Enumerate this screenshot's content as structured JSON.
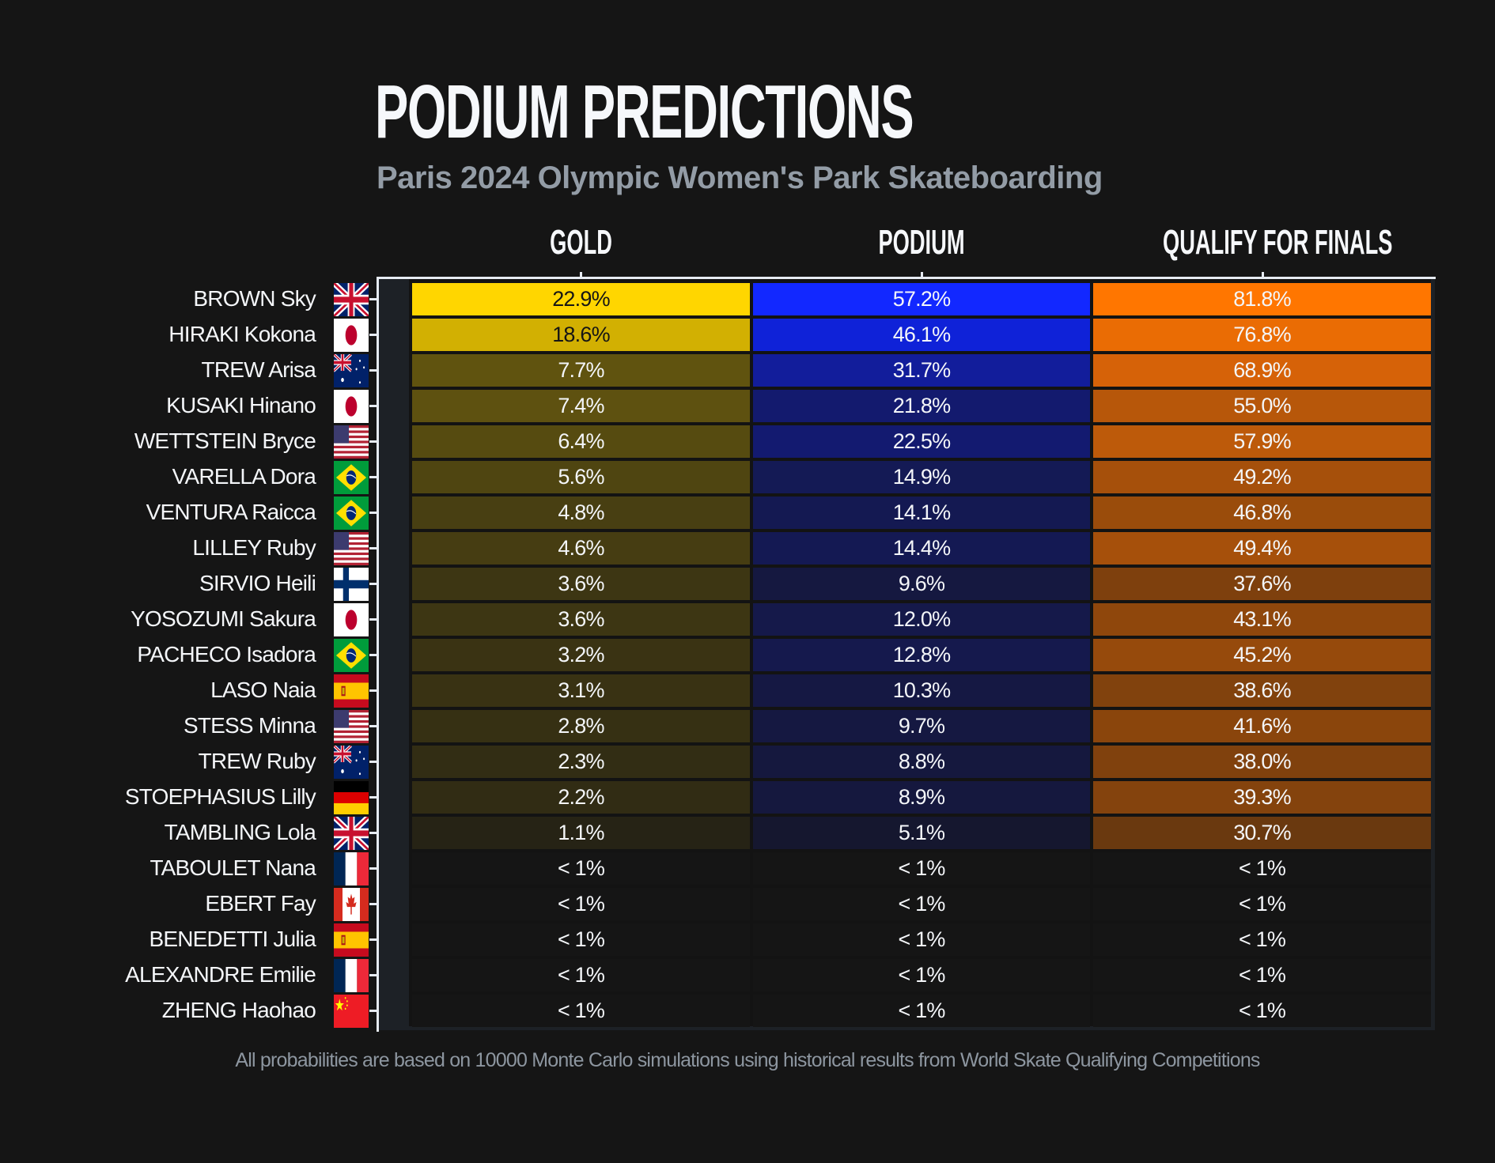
{
  "title": "PODIUM PREDICTIONS",
  "subtitle": "Paris 2024 Olympic Women's Park Skateboarding",
  "columns": [
    "GOLD",
    "PODIUM",
    "QUALIFY FOR FINALS"
  ],
  "footer": "All probabilities are based on 10000 Monte Carlo simulations using historical results from World Skate Qualifying Competitions",
  "colors": {
    "background": "#151515",
    "gold_max": "#ffd600",
    "podium_max": "#1228ff",
    "qualify_max": "#ff7600",
    "subtitle": "#939ca6"
  },
  "rows": [
    {
      "name": "BROWN Sky",
      "flag": "gb",
      "gold": "22.9%",
      "podium": "57.2%",
      "qualify": "81.8%",
      "gold_color": "#ffd600",
      "podium_color": "#1228ff",
      "qualify_color": "#ff7600"
    },
    {
      "name": "HIRAKI Kokona",
      "flag": "jp",
      "gold": "18.6%",
      "podium": "46.1%",
      "qualify": "76.8%",
      "gold_color": "#d2b002",
      "podium_color": "#0f22d8",
      "qualify_color": "#ea6c04"
    },
    {
      "name": "TREW Arisa",
      "flag": "au",
      "gold": "7.7%",
      "podium": "31.7%",
      "qualify": "68.9%",
      "gold_color": "#60530f",
      "podium_color": "#121d9b",
      "qualify_color": "#d66208"
    },
    {
      "name": "KUSAKI Hinano",
      "flag": "jp",
      "gold": "7.4%",
      "podium": "21.8%",
      "qualify": "55.0%",
      "gold_color": "#5e5110",
      "podium_color": "#131a6e",
      "qualify_color": "#b7570a"
    },
    {
      "name": "WETTSTEIN Bryce",
      "flag": "us",
      "gold": "6.4%",
      "podium": "22.5%",
      "qualify": "57.9%",
      "gold_color": "#564b10",
      "podium_color": "#131a70",
      "qualify_color": "#bd5a0a"
    },
    {
      "name": "VARELLA Dora",
      "flag": "br",
      "gold": "5.6%",
      "podium": "14.9%",
      "qualify": "49.2%",
      "gold_color": "#4f4511",
      "podium_color": "#141a55",
      "qualify_color": "#a6500b"
    },
    {
      "name": "VENTURA Raicca",
      "flag": "br",
      "gold": "4.8%",
      "podium": "14.1%",
      "qualify": "46.8%",
      "gold_color": "#483f12",
      "podium_color": "#141952",
      "qualify_color": "#9a4c0b"
    },
    {
      "name": "LILLEY Ruby",
      "flag": "us",
      "gold": "4.6%",
      "podium": "14.4%",
      "qualify": "49.4%",
      "gold_color": "#463d12",
      "podium_color": "#141953",
      "qualify_color": "#a6500b"
    },
    {
      "name": "SIRVIO Heili",
      "flag": "fi",
      "gold": "3.6%",
      "podium": "9.6%",
      "qualify": "37.6%",
      "gold_color": "#3d3613",
      "podium_color": "#151840",
      "qualify_color": "#7e400d"
    },
    {
      "name": "YOSOZUMI Sakura",
      "flag": "jp",
      "gold": "3.6%",
      "podium": "12.0%",
      "qualify": "43.1%",
      "gold_color": "#3d3613",
      "podium_color": "#15194a",
      "qualify_color": "#8f470c"
    },
    {
      "name": "PACHECO Isadora",
      "flag": "br",
      "gold": "3.2%",
      "podium": "12.8%",
      "qualify": "45.2%",
      "gold_color": "#3a3313",
      "podium_color": "#15194d",
      "qualify_color": "#964a0c"
    },
    {
      "name": "LASO Naia",
      "flag": "es",
      "gold": "3.1%",
      "podium": "10.3%",
      "qualify": "38.6%",
      "gold_color": "#393213",
      "podium_color": "#151843",
      "qualify_color": "#81420d"
    },
    {
      "name": "STESS Minna",
      "flag": "us",
      "gold": "2.8%",
      "podium": "9.7%",
      "qualify": "41.6%",
      "gold_color": "#363013",
      "podium_color": "#151841",
      "qualify_color": "#8a450c"
    },
    {
      "name": "TREW Ruby",
      "flag": "au",
      "gold": "2.3%",
      "podium": "8.8%",
      "qualify": "38.0%",
      "gold_color": "#322d14",
      "podium_color": "#15183e",
      "qualify_color": "#80410d"
    },
    {
      "name": "STOEPHASIUS Lilly",
      "flag": "de",
      "gold": "2.2%",
      "podium": "8.9%",
      "qualify": "39.3%",
      "gold_color": "#312c14",
      "podium_color": "#15183e",
      "qualify_color": "#84430d"
    },
    {
      "name": "TAMBLING Lola",
      "flag": "gb",
      "gold": "1.1%",
      "podium": "5.1%",
      "qualify": "30.7%",
      "gold_color": "#262315",
      "podium_color": "#15172f",
      "qualify_color": "#6a390f"
    },
    {
      "name": "TABOULET Nana",
      "flag": "fr",
      "gold": "< 1%",
      "podium": "< 1%",
      "qualify": "< 1%",
      "gold_color": "#151515",
      "podium_color": "#151515",
      "qualify_color": "#151515"
    },
    {
      "name": "EBERT Fay",
      "flag": "ca",
      "gold": "< 1%",
      "podium": "< 1%",
      "qualify": "< 1%",
      "gold_color": "#151515",
      "podium_color": "#151515",
      "qualify_color": "#151515"
    },
    {
      "name": "BENEDETTI Julia",
      "flag": "es",
      "gold": "< 1%",
      "podium": "< 1%",
      "qualify": "< 1%",
      "gold_color": "#151515",
      "podium_color": "#151515",
      "qualify_color": "#151515"
    },
    {
      "name": "ALEXANDRE Emilie",
      "flag": "fr",
      "gold": "< 1%",
      "podium": "< 1%",
      "qualify": "< 1%",
      "gold_color": "#151515",
      "podium_color": "#151515",
      "qualify_color": "#151515"
    },
    {
      "name": "ZHENG Haohao",
      "flag": "cn",
      "gold": "< 1%",
      "podium": "< 1%",
      "qualify": "< 1%",
      "gold_color": "#151515",
      "podium_color": "#151515",
      "qualify_color": "#151515"
    }
  ],
  "chart_data": {
    "type": "heatmap",
    "title": "PODIUM PREDICTIONS",
    "subtitle": "Paris 2024 Olympic Women's Park Skateboarding",
    "x": [
      "GOLD",
      "PODIUM",
      "QUALIFY FOR FINALS"
    ],
    "y": [
      "BROWN Sky",
      "HIRAKI Kokona",
      "TREW Arisa",
      "KUSAKI Hinano",
      "WETTSTEIN Bryce",
      "VARELLA Dora",
      "VENTURA Raicca",
      "LILLEY Ruby",
      "SIRVIO Heili",
      "YOSOZUMI Sakura",
      "PACHECO Isadora",
      "LASO Naia",
      "STESS Minna",
      "TREW Ruby",
      "STOEPHASIUS Lilly",
      "TAMBLING Lola",
      "TABOULET Nana",
      "EBERT Fay",
      "BENEDETTI Julia",
      "ALEXANDRE Emilie",
      "ZHENG Haohao"
    ],
    "countries": [
      "GBR",
      "JPN",
      "AUS",
      "JPN",
      "USA",
      "BRA",
      "BRA",
      "USA",
      "FIN",
      "JPN",
      "BRA",
      "ESP",
      "USA",
      "AUS",
      "GER",
      "GBR",
      "FRA",
      "CAN",
      "ESP",
      "FRA",
      "CHN"
    ],
    "series": [
      {
        "name": "GOLD",
        "values": [
          22.9,
          18.6,
          7.7,
          7.4,
          6.4,
          5.6,
          4.8,
          4.6,
          3.6,
          3.6,
          3.2,
          3.1,
          2.8,
          2.3,
          2.2,
          1.1,
          "<1",
          "<1",
          "<1",
          "<1",
          "<1"
        ]
      },
      {
        "name": "PODIUM",
        "values": [
          57.2,
          46.1,
          31.7,
          21.8,
          22.5,
          14.9,
          14.1,
          14.4,
          9.6,
          12.0,
          12.8,
          10.3,
          9.7,
          8.8,
          8.9,
          5.1,
          "<1",
          "<1",
          "<1",
          "<1",
          "<1"
        ]
      },
      {
        "name": "QUALIFY FOR FINALS",
        "values": [
          81.8,
          76.8,
          68.9,
          55.0,
          57.9,
          49.2,
          46.8,
          49.4,
          37.6,
          43.1,
          45.2,
          38.6,
          41.6,
          38.0,
          39.3,
          30.7,
          "<1",
          "<1",
          "<1",
          "<1",
          "<1"
        ]
      }
    ],
    "unit": "%",
    "note": "All probabilities are based on 10000 Monte Carlo simulations using historical results from World Skate Qualifying Competitions"
  }
}
